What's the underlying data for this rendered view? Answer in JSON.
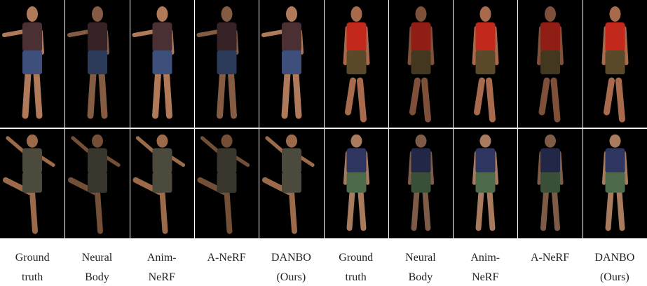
{
  "figure": {
    "captions": [
      [
        "Ground",
        "truth"
      ],
      [
        "Neural",
        "Body"
      ],
      [
        "Anim-",
        "NeRF"
      ],
      [
        "A-NeRF"
      ],
      [
        "DANBO",
        "(Ours)"
      ],
      [
        "Ground",
        "truth"
      ],
      [
        "Neural",
        "Body"
      ],
      [
        "Anim-",
        "NeRF"
      ],
      [
        "A-NeRF"
      ],
      [
        "DANBO",
        "(Ours)"
      ]
    ]
  }
}
